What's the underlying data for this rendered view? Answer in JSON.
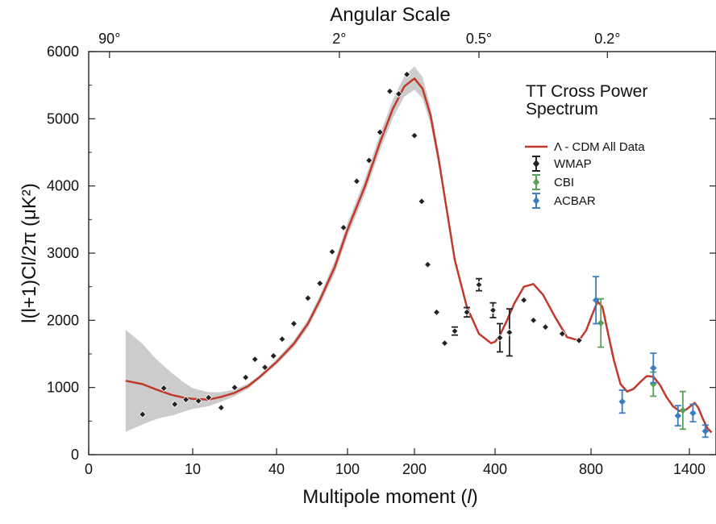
{
  "chart_data": {
    "type": "scatter",
    "title": "TT Cross Power Spectrum",
    "title_lines": [
      "TT Cross Power",
      "Spectrum"
    ],
    "xlabel_prefix": "Multipole moment (",
    "xlabel_symbol": "l",
    "xlabel_suffix": ")",
    "ylabel": "l(l+1)Cl/2π (μK²)",
    "top_axis_title": "Angular Scale",
    "top_ticks": [
      {
        "label": "90°",
        "l": 2
      },
      {
        "label": "2°",
        "l": 90
      },
      {
        "label": "0.5°",
        "l": 360
      },
      {
        "label": "0.2°",
        "l": 900
      }
    ],
    "x_scale": "log-like (low multipoles) to linear (high multipoles)",
    "xticks": [
      0,
      10,
      40,
      100,
      200,
      400,
      800,
      1400
    ],
    "yticks": [
      0,
      1000,
      2000,
      3000,
      4000,
      5000,
      6000
    ],
    "ylim": [
      0,
      6000
    ],
    "grid": false,
    "legend_position": "top-right",
    "colors": {
      "model": "#c0392b",
      "band": "#cccccc",
      "wmap": "#222222",
      "cbi": "#5aa05a",
      "acbar": "#3a7dc0"
    },
    "model": {
      "name": "Λ - CDM All Data",
      "l": [
        2,
        3,
        4,
        5,
        6,
        8,
        10,
        13,
        16,
        20,
        25,
        30,
        40,
        50,
        60,
        70,
        85,
        100,
        120,
        140,
        160,
        180,
        200,
        220,
        240,
        260,
        280,
        300,
        330,
        360,
        390,
        400,
        420,
        450,
        480,
        520,
        560,
        600,
        650,
        700,
        750,
        780,
        810,
        840,
        870,
        900,
        940,
        980,
        1020,
        1060,
        1100,
        1140,
        1180,
        1220,
        1260,
        1300,
        1340,
        1380,
        1420,
        1460,
        1500,
        1550,
        1600,
        1650
      ],
      "values": [
        1100,
        1050,
        980,
        930,
        890,
        850,
        830,
        820,
        860,
        920,
        1020,
        1150,
        1380,
        1650,
        1950,
        2300,
        2800,
        3350,
        4000,
        4650,
        5150,
        5480,
        5600,
        5450,
        5050,
        4400,
        3650,
        2900,
        2200,
        1800,
        1660,
        1680,
        1780,
        2000,
        2250,
        2500,
        2540,
        2380,
        2050,
        1750,
        1700,
        1850,
        2100,
        2280,
        2200,
        1850,
        1400,
        1050,
        940,
        980,
        1080,
        1170,
        1160,
        1040,
        860,
        720,
        650,
        670,
        730,
        770,
        700,
        540,
        400,
        330
      ]
    },
    "band": {
      "l": [
        2,
        3,
        4,
        5,
        6,
        8,
        10,
        13,
        16,
        20,
        25,
        30,
        40,
        50,
        60,
        70,
        85,
        100,
        120,
        140,
        160,
        180,
        200,
        220,
        240,
        260,
        280,
        300
      ],
      "upper": [
        1860,
        1650,
        1450,
        1320,
        1220,
        1080,
        990,
        930,
        930,
        970,
        1060,
        1180,
        1420,
        1700,
        2010,
        2370,
        2890,
        3450,
        4110,
        4770,
        5290,
        5630,
        5780,
        5620,
        5180,
        4500,
        3700,
        2930
      ],
      "lower": [
        340,
        450,
        520,
        560,
        580,
        640,
        680,
        720,
        790,
        870,
        980,
        1120,
        1340,
        1600,
        1890,
        2230,
        2710,
        3250,
        3890,
        4530,
        5010,
        5330,
        5430,
        5300,
        4920,
        4300,
        3600,
        2870
      ]
    },
    "series": [
      {
        "name": "WMAP",
        "color": "#222222",
        "l": [
          3,
          5,
          6.5,
          8.5,
          11,
          13,
          16,
          20,
          24,
          28,
          33,
          38,
          43,
          50,
          60,
          70,
          82,
          95,
          110,
          125,
          140,
          155,
          170,
          185,
          200,
          218,
          233,
          255,
          275,
          300,
          330,
          360,
          395,
          420,
          460,
          520,
          560,
          610,
          680,
          750
        ],
        "values": [
          600,
          990,
          750,
          820,
          800,
          850,
          700,
          1000,
          1150,
          1420,
          1300,
          1470,
          1720,
          1950,
          2330,
          2550,
          3020,
          3380,
          4070,
          4380,
          4800,
          5410,
          5370,
          5660,
          4750,
          3770,
          2830,
          2120,
          1660,
          1840,
          2120,
          2530,
          2150,
          1740,
          1820,
          2300,
          2000,
          1900,
          1800,
          1700
        ],
        "err": [
          0,
          0,
          0,
          0,
          0,
          0,
          0,
          0,
          0,
          0,
          0,
          0,
          0,
          0,
          0,
          0,
          0,
          0,
          0,
          0,
          0,
          0,
          0,
          0,
          0,
          0,
          0,
          0,
          0,
          60,
          70,
          90,
          110,
          210,
          350,
          0,
          0,
          0,
          0,
          0
        ]
      },
      {
        "name": "CBI",
        "color": "#5aa05a",
        "l": [
          860,
          1180,
          1360
        ],
        "values": [
          1960,
          1050,
          660
        ],
        "err": [
          360,
          180,
          280
        ]
      },
      {
        "name": "ACBAR",
        "color": "#3a7dc0",
        "l": [
          830,
          990,
          1180,
          1330,
          1440,
          1580
        ],
        "values": [
          2300,
          790,
          1290,
          580,
          620,
          350
        ],
        "err": [
          350,
          170,
          220,
          150,
          130,
          90
        ]
      }
    ]
  },
  "legend": {
    "model_label": "Λ - CDM All Data",
    "wmap_label": "WMAP",
    "cbi_label": "CBI",
    "acbar_label": "ACBAR"
  }
}
